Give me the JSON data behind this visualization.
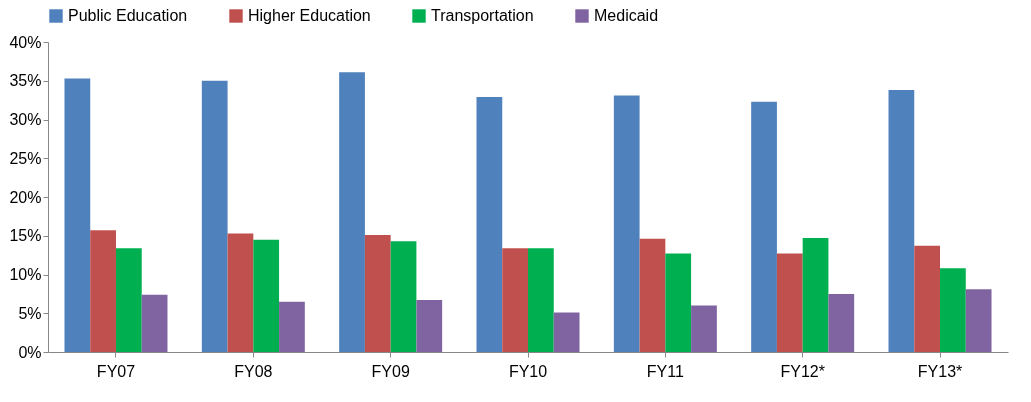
{
  "chart_data": {
    "type": "bar",
    "categories": [
      "FY07",
      "FY08",
      "FY09",
      "FY10",
      "FY11",
      "FY12*",
      "FY13*"
    ],
    "series": [
      {
        "name": "Public Education",
        "color": "#4f81bd",
        "values": [
          35.3,
          35.0,
          36.1,
          32.9,
          33.1,
          32.3,
          33.8
        ]
      },
      {
        "name": "Higher Education",
        "color": "#c0504d",
        "values": [
          15.7,
          15.3,
          15.1,
          13.4,
          14.6,
          12.7,
          13.7
        ]
      },
      {
        "name": "Transportation",
        "color": "#00b050",
        "values": [
          13.4,
          14.5,
          14.3,
          13.4,
          12.7,
          14.7,
          10.8
        ]
      },
      {
        "name": "Medicaid",
        "color": "#8064a2",
        "values": [
          7.4,
          6.5,
          6.7,
          5.1,
          6.0,
          7.5,
          8.1
        ]
      }
    ],
    "ylim": [
      0,
      40
    ],
    "yticks": [
      {
        "value": 0,
        "label": "0%"
      },
      {
        "value": 5,
        "label": "5%"
      },
      {
        "value": 10,
        "label": "10%"
      },
      {
        "value": 15,
        "label": "15%"
      },
      {
        "value": 20,
        "label": "20%"
      },
      {
        "value": 25,
        "label": "25%"
      },
      {
        "value": 30,
        "label": "30%"
      },
      {
        "value": 35,
        "label": "35%"
      },
      {
        "value": 40,
        "label": "40%"
      }
    ],
    "legend": "top",
    "grid": false
  }
}
